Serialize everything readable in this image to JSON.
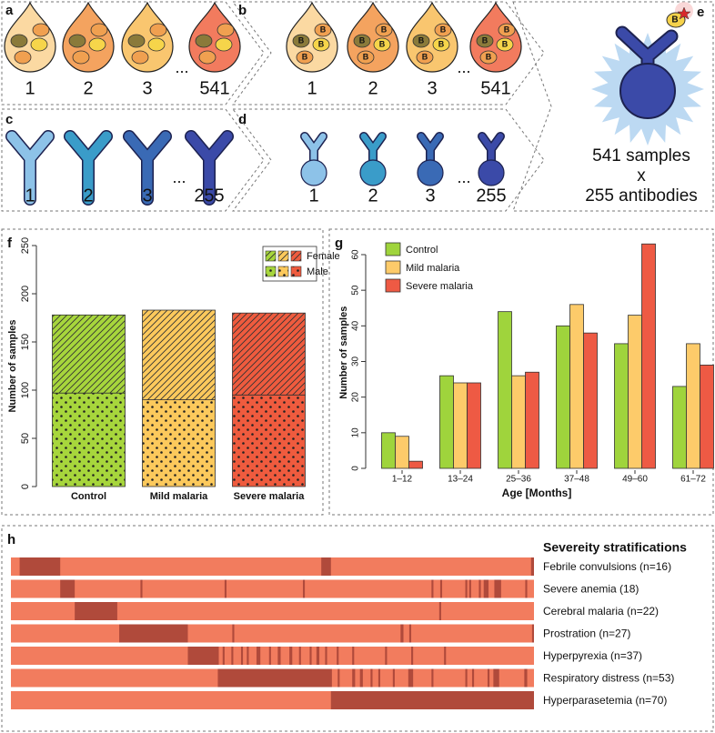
{
  "diagram": {
    "a": {
      "label": "a",
      "items": [
        "1",
        "2",
        "3",
        "541"
      ]
    },
    "b": {
      "label": "b",
      "items": [
        "1",
        "2",
        "3",
        "541"
      ],
      "bead": "B"
    },
    "c": {
      "label": "c",
      "items": [
        "1",
        "2",
        "3",
        "255"
      ]
    },
    "d": {
      "label": "d",
      "items": [
        "1",
        "2",
        "3",
        "255"
      ]
    },
    "e": {
      "label": "e",
      "lines": [
        "541 samples",
        "x",
        "255 antibodies"
      ]
    },
    "ellipsis": "..."
  },
  "chart_data": [
    {
      "type": "stacked-bar",
      "label": "f",
      "categories": [
        "Control",
        "Mild malaria",
        "Severe malaria"
      ],
      "colors": [
        "#a7d63c",
        "#fcc95c",
        "#ef5b3e"
      ],
      "series": [
        {
          "name": "Male",
          "pattern": "dots",
          "values": [
            97,
            90,
            95
          ]
        },
        {
          "name": "Female",
          "pattern": "hatch",
          "values": [
            81,
            93,
            85
          ]
        }
      ],
      "ylabel": "Number of samples",
      "ylim": [
        0,
        250
      ],
      "yticks": [
        0,
        50,
        100,
        150,
        200,
        250
      ],
      "legend": "top-right"
    },
    {
      "type": "grouped-bar",
      "label": "g",
      "categories": [
        "1–12",
        "13–24",
        "25–36",
        "37–48",
        "49–60",
        "61–72"
      ],
      "series": [
        {
          "name": "Control",
          "color": "#9fd43c",
          "values": [
            10,
            26,
            44,
            40,
            35,
            23
          ]
        },
        {
          "name": "Mild malaria",
          "color": "#fdcb6a",
          "values": [
            9,
            24,
            26,
            46,
            43,
            35
          ]
        },
        {
          "name": "Severe malaria",
          "color": "#ee5a44",
          "values": [
            2,
            24,
            27,
            38,
            63,
            29
          ]
        }
      ],
      "xlabel": "Age [Months]",
      "ylabel": "Number of samples",
      "ylim": [
        0,
        65
      ],
      "yticks": [
        0,
        10,
        20,
        30,
        40,
        50,
        60
      ],
      "legend": "top-left"
    },
    {
      "type": "strips",
      "label": "h",
      "title": "Severeity stratifications",
      "xlim": [
        0,
        541
      ],
      "base_color": "#f27c5e",
      "mark_color": "#b04a3b",
      "rows": [
        {
          "name": "Febrile convulsions (n=16)",
          "segments": [
            [
              9,
              51
            ],
            [
              321,
              331
            ],
            [
              538,
              541
            ]
          ]
        },
        {
          "name": "Severe anemia (18)",
          "segments": [
            [
              51,
              66
            ],
            [
              134,
              136
            ],
            [
              221,
              223
            ],
            [
              302,
              304
            ],
            [
              435,
              437
            ],
            [
              444,
              446
            ],
            [
              470,
              472
            ],
            [
              474,
              476
            ],
            [
              484,
              486
            ],
            [
              489,
              494
            ],
            [
              500,
              507
            ],
            [
              532,
              534
            ]
          ]
        },
        {
          "name": "Cerebral malaria (n=22)",
          "segments": [
            [
              66,
              110
            ],
            [
              443,
              445
            ]
          ]
        },
        {
          "name": "Prostration (n=27)",
          "segments": [
            [
              112,
              183
            ],
            [
              229,
              231
            ],
            [
              403,
              406
            ],
            [
              412,
              414
            ],
            [
              539,
              541
            ]
          ]
        },
        {
          "name": "Hyperpyrexia (n=37)",
          "segments": [
            [
              183,
              215
            ],
            [
              219,
              221
            ],
            [
              228,
              230
            ],
            [
              238,
              240
            ],
            [
              244,
              246
            ],
            [
              254,
              258
            ],
            [
              267,
              269
            ],
            [
              276,
              279
            ],
            [
              288,
              291
            ],
            [
              298,
              300
            ],
            [
              309,
              311
            ],
            [
              316,
              319
            ],
            [
              325,
              327
            ],
            [
              337,
              339
            ],
            [
              353,
              355
            ],
            [
              387,
              389
            ],
            [
              414,
              416
            ],
            [
              448,
              450
            ]
          ]
        },
        {
          "name": "Respiratory distress (n=53)",
          "segments": [
            [
              214,
              332
            ],
            [
              338,
              340
            ],
            [
              353,
              356
            ],
            [
              361,
              364
            ],
            [
              372,
              374
            ],
            [
              380,
              382
            ],
            [
              395,
              397
            ],
            [
              411,
              416
            ],
            [
              435,
              437
            ],
            [
              470,
              472
            ],
            [
              477,
              479
            ],
            [
              493,
              495
            ],
            [
              499,
              505
            ],
            [
              531,
              534
            ]
          ]
        },
        {
          "name": "Hyperparasetemia (n=70)",
          "segments": [
            [
              331,
              541
            ]
          ]
        }
      ]
    }
  ]
}
